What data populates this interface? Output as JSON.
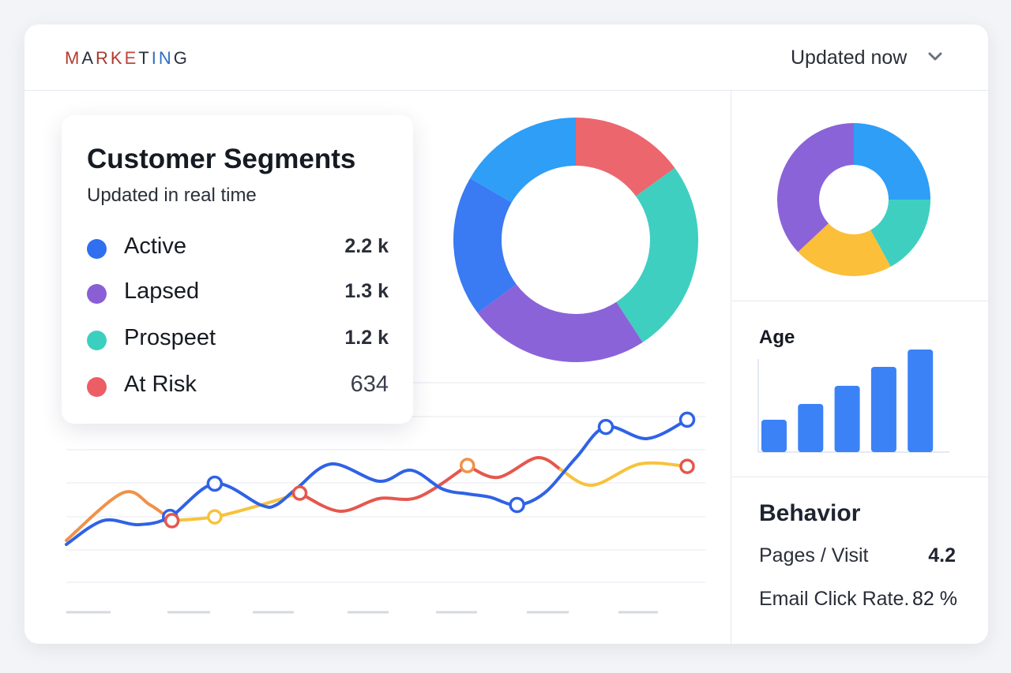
{
  "header": {
    "logo_text": "MARKETING",
    "logo_letter_colors": [
      "#b33a2e",
      "#2b3040",
      "#a53a30",
      "#b33a2e",
      "#c0463a",
      "#2b3040",
      "#2f6fc4",
      "#2f6fc4",
      "#2b3040"
    ],
    "updated_label": "Updated now",
    "dropdown_icon": "chevron-down-icon"
  },
  "segments_card": {
    "title": "Customer Segments",
    "subtitle": "Updated in real time",
    "items": [
      {
        "label": "Active",
        "value": "2.2 k",
        "color": "#2f6ff0"
      },
      {
        "label": "Lapsed",
        "value": "1.3 k",
        "color": "#8a5fd6"
      },
      {
        "label": "Prospeet",
        "value": "1.2 k",
        "color": "#3ccfbf"
      },
      {
        "label": "At Risk",
        "value": "634",
        "color": "#ec5d66"
      }
    ]
  },
  "age_panel": {
    "title": "Age"
  },
  "behavior_panel": {
    "title": "Behavior",
    "metrics": [
      {
        "label": "Pages / Visit",
        "value": "4.2"
      },
      {
        "label": "Email Click Rate.",
        "value": "82 %"
      }
    ]
  },
  "chart_data": [
    {
      "type": "pie",
      "variant": "donut",
      "slices": [
        {
          "value": 15,
          "color": "#ec666e"
        },
        {
          "value": 25.8,
          "color": "#3ecfc0"
        },
        {
          "value": 24,
          "color": "#8a63d8"
        },
        {
          "value": 18.6,
          "color": "#3a7af2"
        },
        {
          "value": 16.6,
          "color": "#2e9ef7"
        }
      ]
    },
    {
      "type": "pie",
      "variant": "donut",
      "slices": [
        {
          "value": 25,
          "color": "#2e9ef7"
        },
        {
          "value": 17,
          "color": "#3ecfc0"
        },
        {
          "value": 21,
          "color": "#fbbf3a"
        },
        {
          "value": 37,
          "color": "#8a63d8"
        }
      ]
    },
    {
      "type": "bar",
      "title": "Age",
      "values": [
        41,
        61,
        84,
        108,
        130
      ],
      "color": "#3b82f6",
      "grid": false
    },
    {
      "type": "line",
      "grid": true,
      "series": [
        {
          "color": "#2f62e6",
          "markers": [
            3,
            4,
            14,
            17,
            19
          ],
          "points": [
            [
              0,
              19.6
            ],
            [
              5.9,
              31.4
            ],
            [
              11.6,
              29.4
            ],
            [
              16.7,
              33.3
            ],
            [
              23.9,
              49.8
            ],
            [
              31.3,
              39.2
            ],
            [
              33.8,
              39.2
            ],
            [
              37,
              47.1
            ],
            [
              42.7,
              59.6
            ],
            [
              50.4,
              51
            ],
            [
              55.5,
              56.5
            ],
            [
              60.6,
              47.1
            ],
            [
              64.7,
              44.7
            ],
            [
              68.2,
              43.1
            ],
            [
              72.6,
              39.2
            ],
            [
              77,
              45.1
            ],
            [
              82.1,
              62.7
            ],
            [
              86.9,
              78
            ],
            [
              93.6,
              72.2
            ],
            [
              100,
              81.6
            ]
          ]
        },
        {
          "segments": [
            {
              "color": "#f0914a",
              "points": [
                [
                  0,
                  21.6
                ],
                [
                  9,
                  45.1
                ],
                [
                  13.5,
                  39.2
                ],
                [
                  17,
                  31.4
                ]
              ]
            },
            {
              "color": "#f7c23d",
              "points": [
                [
                  17,
                  31.4
                ],
                [
                  23.9,
                  33.3
                ],
                [
                  31.3,
                  39.2
                ],
                [
                  37.6,
                  45.1
                ]
              ]
            },
            {
              "color": "#e5574d",
              "points": [
                [
                  37.6,
                  45.1
                ],
                [
                  44,
                  36.1
                ],
                [
                  50.4,
                  42.4
                ],
                [
                  56.7,
                  43.1
                ],
                [
                  64.6,
                  58.8
                ]
              ]
            },
            {
              "color": "#e5574d",
              "points": [
                [
                  64.6,
                  58.8
                ],
                [
                  69.5,
                  52.9
                ],
                [
                  75.8,
                  62.7
                ],
                [
                  79.6,
                  56.9
                ]
              ]
            },
            {
              "color": "#f7c23d",
              "points": [
                [
                  79.6,
                  56.9
                ],
                [
                  84.7,
                  49
                ],
                [
                  92.4,
                  59.6
                ],
                [
                  100,
                  58.4
                ]
              ]
            }
          ],
          "markers": [
            [
              17,
              31.4,
              "#e5574d"
            ],
            [
              23.9,
              33.3,
              "#f7c23d"
            ],
            [
              37.6,
              45.1,
              "#e5574d"
            ],
            [
              64.6,
              58.8,
              "#f0914a"
            ],
            [
              100,
              58.4,
              "#e5574d"
            ]
          ]
        }
      ]
    }
  ]
}
